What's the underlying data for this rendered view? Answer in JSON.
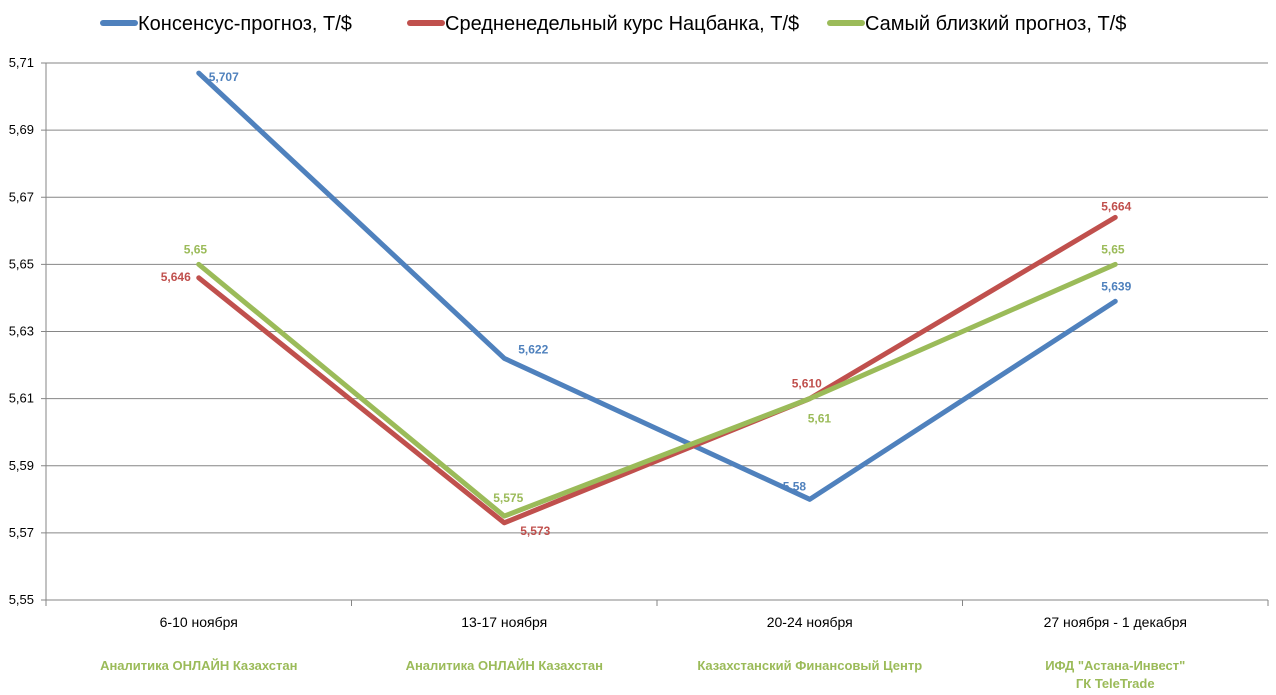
{
  "chart_data": {
    "type": "line",
    "categories": [
      "6-10 ноября",
      "13-17 ноября",
      "20-24 ноября",
      "27 ноября - 1 декабря"
    ],
    "sources": [
      [
        "Аналитика ОНЛАЙН Казахстан"
      ],
      [
        "Аналитика ОНЛАЙН Казахстан"
      ],
      [
        "Казахстанский Финансовый Центр"
      ],
      [
        "ИФД \"Астана-Инвест\"",
        "ГК TeleTrade"
      ]
    ],
    "ylim": [
      5.55,
      5.71
    ],
    "yticks": [
      "5,55",
      "5,57",
      "5,59",
      "5,61",
      "5,63",
      "5,65",
      "5,67",
      "5,69",
      "5,71"
    ],
    "grid": true,
    "legend_position": "top",
    "series": [
      {
        "name": "Консенсус-прогноз,  Т/$",
        "color": "#4f81bd",
        "values": [
          5.707,
          5.622,
          5.58,
          5.639
        ],
        "labels": [
          "5,707",
          "5,622",
          "5,58",
          "5,639"
        ]
      },
      {
        "name": "Средненедельный  курс Нацбанка, Т/$",
        "color": "#c0504d",
        "values": [
          5.646,
          5.573,
          5.61,
          5.664
        ],
        "labels": [
          "5,646",
          "5,573",
          "5,610",
          "5,664"
        ]
      },
      {
        "name": "Самый близкий прогноз, Т/$",
        "color": "#9bbb59",
        "values": [
          5.65,
          5.575,
          5.61,
          5.65
        ],
        "labels": [
          "5,65",
          "5,575",
          "5,61",
          "5,65"
        ]
      }
    ]
  },
  "colors": {
    "source_text": "#9bbb59",
    "grid": "#868686",
    "axis": "#868686"
  }
}
